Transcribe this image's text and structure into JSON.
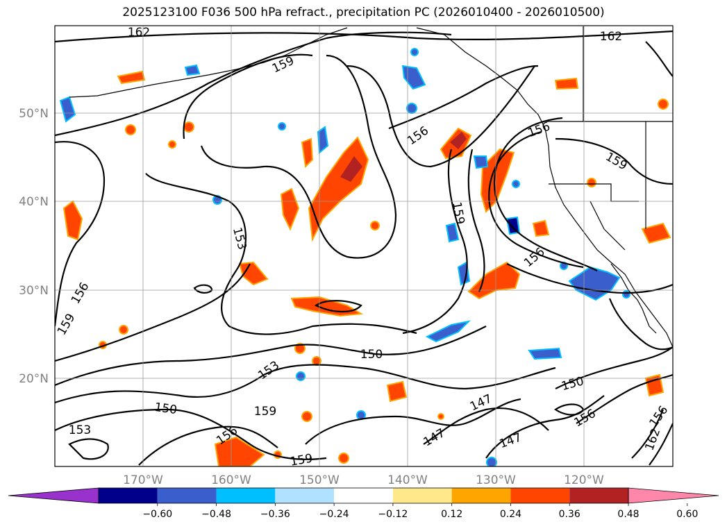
{
  "title": "2025123100 F036 500 hPa refract., precipitation PC (2026010400 - 2026010500)",
  "map": {
    "lat_labels": [
      "50°N",
      "40°N",
      "30°N",
      "20°N"
    ],
    "lon_labels": [
      "170°W",
      "160°W",
      "150°W",
      "140°W",
      "130°W",
      "120°W"
    ],
    "contour_labels": [
      {
        "text": "162"
      },
      {
        "text": "162"
      },
      {
        "text": "159"
      },
      {
        "text": "156"
      },
      {
        "text": "156"
      },
      {
        "text": "159"
      },
      {
        "text": "153"
      },
      {
        "text": "159"
      },
      {
        "text": "156"
      },
      {
        "text": "159"
      },
      {
        "text": "156"
      },
      {
        "text": "150"
      },
      {
        "text": "153"
      },
      {
        "text": "150"
      },
      {
        "text": "159"
      },
      {
        "text": "153"
      },
      {
        "text": "156"
      },
      {
        "text": "159"
      },
      {
        "text": "147"
      },
      {
        "text": "147"
      },
      {
        "text": "147"
      },
      {
        "text": "150"
      },
      {
        "text": "156"
      },
      {
        "text": "156"
      },
      {
        "text": "162"
      }
    ]
  },
  "colorbar": {
    "colors": [
      "#9932cc",
      "#00008b",
      "#3a5fcd",
      "#00bfff",
      "#b0e2ff",
      "#ffffff",
      "#ffe88a",
      "#ffa500",
      "#ff4500",
      "#b22222",
      "#ff88aa"
    ],
    "ticks": [
      "−0.60",
      "−0.48",
      "−0.36",
      "−0.24",
      "−0.12",
      "0.12",
      "0.24",
      "0.36",
      "0.48",
      "0.60"
    ]
  }
}
